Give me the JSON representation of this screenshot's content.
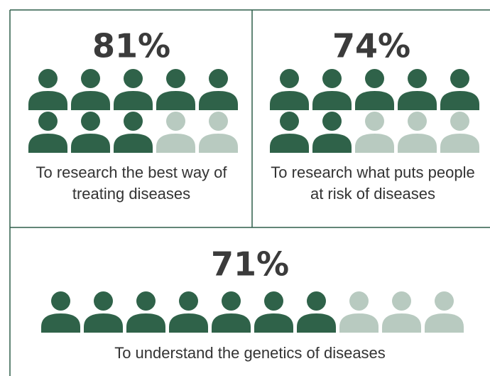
{
  "chart_data": [
    {
      "type": "pictogram",
      "values": [
        81
      ],
      "value_labels": [
        "81%"
      ],
      "categories": [
        "To research the best way of treating diseases"
      ],
      "color": "#2f6249",
      "empty_color": "#b8cac0"
    },
    {
      "type": "pictogram",
      "values": [
        74
      ],
      "value_labels": [
        "74%"
      ],
      "categories": [
        "To research what puts people at risk of diseases"
      ],
      "color": "#2f6249",
      "empty_color": "#b8cac0"
    },
    {
      "type": "pictogram",
      "values": [
        71
      ],
      "value_labels": [
        "71%"
      ],
      "categories": [
        "To understand the genetics of diseases"
      ],
      "color": "#2f6249",
      "empty_color": "#b8cac0"
    }
  ]
}
